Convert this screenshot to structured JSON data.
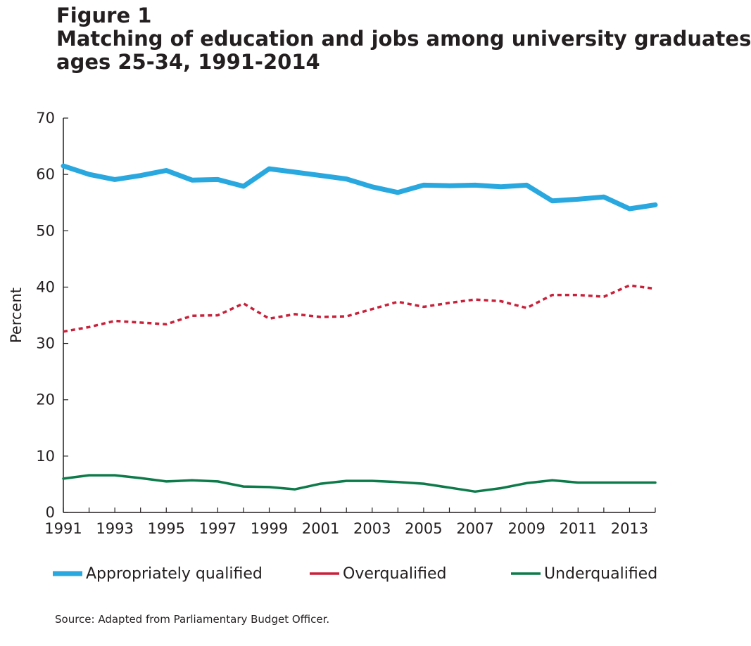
{
  "figure": {
    "label": "Figure 1",
    "title_line1": "Matching of education and jobs among university graduates",
    "title_line2": "ages 25-34, 1991-2014"
  },
  "source": "Source: Adapted from Parliamentary Budget Officer.",
  "chart_data": {
    "type": "line",
    "title": "Matching of education and jobs among university graduates ages 25-34, 1991-2014",
    "xlabel": "",
    "ylabel": "Percent",
    "xlim": [
      1991,
      2014
    ],
    "ylim": [
      0,
      70
    ],
    "y_ticks": [
      0,
      10,
      20,
      30,
      40,
      50,
      60,
      70
    ],
    "x_ticks": [
      1991,
      1993,
      1995,
      1997,
      1999,
      2001,
      2003,
      2005,
      2007,
      2009,
      2011,
      2013
    ],
    "grid": false,
    "legend_position": "bottom",
    "x": [
      1991,
      1992,
      1993,
      1994,
      1995,
      1996,
      1997,
      1998,
      1999,
      2000,
      2001,
      2002,
      2003,
      2004,
      2005,
      2006,
      2007,
      2008,
      2009,
      2010,
      2011,
      2012,
      2013,
      2014
    ],
    "series": [
      {
        "name": "Appropriately qualified",
        "color": "#29a8e0",
        "style": "solid-thick",
        "values": [
          61.5,
          60.0,
          59.1,
          59.8,
          60.7,
          59.0,
          59.1,
          57.9,
          61.0,
          60.4,
          59.8,
          59.2,
          57.8,
          56.8,
          58.1,
          58.0,
          58.1,
          57.8,
          58.1,
          55.3,
          55.6,
          56.0,
          53.9,
          54.6
        ]
      },
      {
        "name": "Overqualified",
        "color": "#c8213a",
        "style": "dotted",
        "values": [
          32.1,
          32.9,
          34.0,
          33.7,
          33.4,
          34.9,
          35.0,
          37.1,
          34.4,
          35.2,
          34.7,
          34.8,
          36.1,
          37.4,
          36.5,
          37.2,
          37.8,
          37.5,
          36.3,
          38.6,
          38.6,
          38.3,
          40.3,
          39.7
        ]
      },
      {
        "name": "Underqualified",
        "color": "#0d7a4a",
        "style": "solid",
        "values": [
          6.0,
          6.6,
          6.6,
          6.1,
          5.5,
          5.7,
          5.5,
          4.6,
          4.5,
          4.1,
          5.1,
          5.6,
          5.6,
          5.4,
          5.1,
          4.4,
          3.7,
          4.3,
          5.2,
          5.7,
          5.3,
          5.3,
          5.3,
          5.3
        ]
      }
    ]
  }
}
